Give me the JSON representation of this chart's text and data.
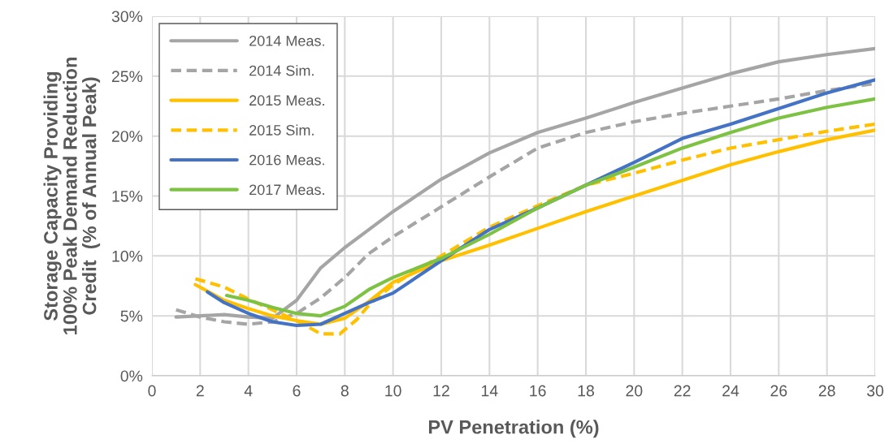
{
  "chart_data": {
    "type": "line",
    "xlabel": "PV Penetration (%)",
    "ylabel": "Storage Capacity Providing\n100% Peak Demand Reduction\nCredit  (% of Annual Peak)",
    "xlim": [
      0,
      30
    ],
    "xticks": [
      0,
      2,
      4,
      6,
      8,
      10,
      12,
      14,
      16,
      18,
      20,
      22,
      24,
      26,
      28,
      30
    ],
    "ylim": [
      0,
      30
    ],
    "yticks": [
      {
        "value": 0,
        "label": "0%"
      },
      {
        "value": 5,
        "label": "5%"
      },
      {
        "value": 10,
        "label": "10%"
      },
      {
        "value": 15,
        "label": "15%"
      },
      {
        "value": 20,
        "label": "20%"
      },
      {
        "value": 25,
        "label": "25%"
      },
      {
        "value": 30,
        "label": "30%"
      }
    ],
    "grid": true,
    "legend": "top left",
    "marker": "none",
    "series": [
      {
        "name": "2014 Meas.",
        "color": "#a5a5a5",
        "line_style": "solid",
        "x": [
          1,
          2,
          3,
          4,
          5,
          6,
          7,
          8,
          9,
          10,
          12,
          14,
          16,
          18,
          20,
          22,
          24,
          26,
          28,
          30
        ],
        "values": [
          4.9,
          5.0,
          5.1,
          4.9,
          4.8,
          6.3,
          9,
          10.7,
          12.2,
          13.7,
          16.4,
          18.6,
          20.3,
          21.5,
          22.8,
          24,
          25.2,
          26.2,
          26.8,
          27.3
        ]
      },
      {
        "name": "2014 Sim.",
        "color": "#a5a5a5",
        "line_style": "dashed",
        "x": [
          1,
          2,
          3,
          4,
          5,
          6,
          7,
          8,
          9,
          10,
          12,
          14,
          16,
          18,
          20,
          22,
          24,
          26,
          28,
          30
        ],
        "values": [
          5.5,
          4.9,
          4.5,
          4.3,
          4.5,
          5.2,
          6.5,
          8.2,
          10.2,
          11.6,
          14.1,
          16.6,
          19,
          20.3,
          21.2,
          21.9,
          22.5,
          23.1,
          23.8,
          24.4
        ]
      },
      {
        "name": "2015 Meas.",
        "color": "#ffc000",
        "line_style": "solid",
        "x": [
          1.8,
          3,
          4,
          5,
          6,
          7,
          8,
          9,
          10,
          12,
          14,
          16,
          18,
          20,
          22,
          24,
          26,
          28,
          30
        ],
        "values": [
          7.6,
          6.3,
          5.6,
          5.0,
          4.6,
          4.3,
          4.8,
          6.2,
          7.8,
          9.6,
          10.9,
          12.3,
          13.7,
          15,
          16.3,
          17.6,
          18.7,
          19.7,
          20.5
        ]
      },
      {
        "name": "2015 Sim.",
        "color": "#ffc000",
        "line_style": "dashed",
        "x": [
          1.8,
          3,
          4,
          5,
          6,
          7,
          7.8,
          8.5,
          9,
          10,
          12,
          14,
          16,
          18,
          20,
          22,
          24,
          26,
          28,
          30
        ],
        "values": [
          8.1,
          7.4,
          6.4,
          5.5,
          4.6,
          3.5,
          3.5,
          4.7,
          5.9,
          7.6,
          10,
          12.4,
          14.2,
          15.9,
          16.9,
          18,
          19,
          19.7,
          20.4,
          21
        ]
      },
      {
        "name": "2016 Meas.",
        "color": "#4472c4",
        "line_style": "solid",
        "x": [
          2.3,
          3,
          4,
          5,
          6,
          7,
          8,
          9,
          10,
          12,
          14,
          16,
          18,
          20,
          22,
          24,
          26,
          28,
          30
        ],
        "values": [
          7.0,
          6.1,
          5.2,
          4.5,
          4.2,
          4.3,
          5.2,
          6.1,
          6.9,
          9.6,
          12.2,
          14,
          15.9,
          17.8,
          19.8,
          21,
          22.3,
          23.6,
          24.7
        ]
      },
      {
        "name": "2017 Meas.",
        "color": "#7dc243",
        "line_style": "solid",
        "x": [
          3.1,
          4,
          5,
          6,
          7,
          8,
          9,
          10,
          12,
          14,
          16,
          18,
          20,
          22,
          24,
          26,
          28,
          30
        ],
        "values": [
          6.7,
          6.3,
          5.7,
          5.2,
          5.0,
          5.8,
          7.2,
          8.2,
          9.8,
          11.8,
          14,
          15.9,
          17.4,
          19,
          20.3,
          21.5,
          22.4,
          23.1
        ]
      }
    ]
  }
}
